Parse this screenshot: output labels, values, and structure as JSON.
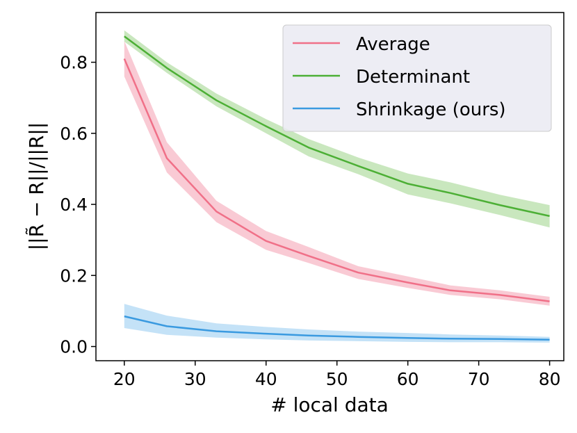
{
  "chart_data": {
    "type": "line",
    "title": "",
    "xlabel": "# local data",
    "ylabel": "||R̃ − R||/||R||",
    "xlim": [
      16,
      82
    ],
    "ylim": [
      -0.04,
      0.94
    ],
    "xticks": [
      20,
      30,
      40,
      50,
      60,
      70,
      80
    ],
    "yticks": [
      0.0,
      0.2,
      0.4,
      0.6,
      0.8
    ],
    "x": [
      20,
      26,
      33,
      40,
      46,
      53,
      60,
      66,
      73,
      80
    ],
    "grid": false,
    "legend_position": "top-right",
    "series": [
      {
        "name": "Average",
        "color": "#f07088",
        "band_color": "#f7b8c6",
        "values": [
          0.81,
          0.53,
          0.38,
          0.297,
          0.255,
          0.208,
          0.18,
          0.158,
          0.145,
          0.127
        ],
        "lower": [
          0.76,
          0.49,
          0.35,
          0.272,
          0.235,
          0.19,
          0.165,
          0.145,
          0.133,
          0.115
        ],
        "upper": [
          0.86,
          0.575,
          0.41,
          0.325,
          0.28,
          0.226,
          0.197,
          0.172,
          0.158,
          0.14
        ]
      },
      {
        "name": "Determinant",
        "color": "#4caf35",
        "band_color": "#b7dfa8",
        "values": [
          0.873,
          0.784,
          0.693,
          0.62,
          0.56,
          0.508,
          0.458,
          0.432,
          0.398,
          0.367
        ],
        "lower": [
          0.858,
          0.77,
          0.676,
          0.6,
          0.535,
          0.485,
          0.428,
          0.403,
          0.37,
          0.335
        ],
        "upper": [
          0.89,
          0.8,
          0.712,
          0.64,
          0.584,
          0.532,
          0.487,
          0.462,
          0.427,
          0.398
        ]
      },
      {
        "name": "Shrinkage (ours)",
        "color": "#3a9ae0",
        "band_color": "#b0d8f4",
        "values": [
          0.085,
          0.057,
          0.043,
          0.036,
          0.031,
          0.027,
          0.024,
          0.022,
          0.021,
          0.019
        ],
        "lower": [
          0.052,
          0.033,
          0.025,
          0.02,
          0.017,
          0.015,
          0.013,
          0.012,
          0.012,
          0.011
        ],
        "upper": [
          0.12,
          0.087,
          0.065,
          0.055,
          0.048,
          0.042,
          0.038,
          0.034,
          0.031,
          0.027
        ]
      }
    ]
  }
}
